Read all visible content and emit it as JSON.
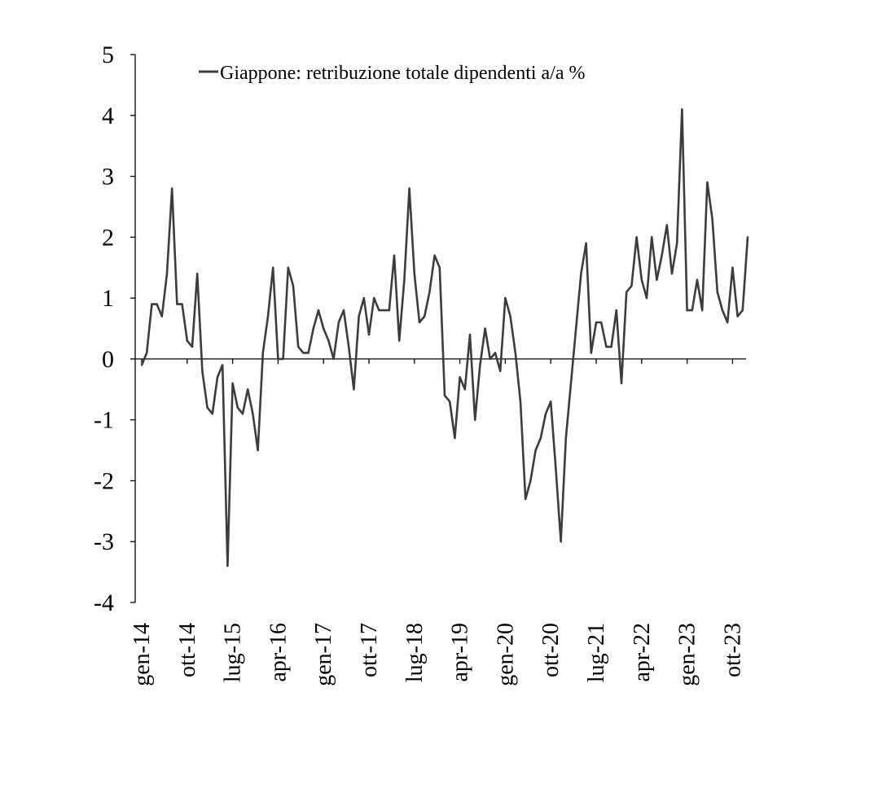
{
  "chart_data": {
    "type": "line",
    "title": "",
    "xlabel": "",
    "ylabel": "",
    "ylim": [
      -4,
      5
    ],
    "y_ticks": [
      5,
      4,
      3,
      2,
      1,
      0,
      -1,
      -2,
      -3,
      -4
    ],
    "x_tick_labels": [
      "gen-14",
      "ott-14",
      "lug-15",
      "apr-16",
      "gen-17",
      "ott-17",
      "lug-18",
      "apr-19",
      "gen-20",
      "ott-20",
      "lug-21",
      "apr-22",
      "gen-23",
      "ott-23"
    ],
    "grid": false,
    "legend": {
      "position": "top",
      "entries": [
        "Giappone: retribuzione totale dipendenti a/a %"
      ]
    },
    "colors": {
      "line": "#3c3c3c",
      "axis": "#000000"
    },
    "series": [
      {
        "name": "Giappone: retribuzione totale dipendenti a/a %",
        "start": "gen-14",
        "frequency": "monthly",
        "values": [
          -0.1,
          0.1,
          0.9,
          0.9,
          0.7,
          1.4,
          2.8,
          0.9,
          0.9,
          0.3,
          0.2,
          1.4,
          -0.2,
          -0.8,
          -0.9,
          -0.3,
          -0.1,
          -3.4,
          -0.4,
          -0.8,
          -0.9,
          -0.5,
          -0.9,
          -1.5,
          0.1,
          0.7,
          1.5,
          0.0,
          0.0,
          1.5,
          1.2,
          0.2,
          0.1,
          0.1,
          0.5,
          0.8,
          0.5,
          0.3,
          0.0,
          0.6,
          0.8,
          0.2,
          -0.5,
          0.7,
          1.0,
          0.4,
          1.0,
          0.8,
          0.8,
          0.8,
          1.7,
          0.3,
          1.3,
          2.8,
          1.4,
          0.6,
          0.7,
          1.1,
          1.7,
          1.5,
          -0.6,
          -0.7,
          -1.3,
          -0.3,
          -0.5,
          0.4,
          -1.0,
          -0.1,
          0.5,
          0.0,
          0.1,
          -0.2,
          1.0,
          0.7,
          0.1,
          -0.7,
          -2.3,
          -2.0,
          -1.5,
          -1.3,
          -0.9,
          -0.7,
          -1.8,
          -3.0,
          -1.3,
          -0.4,
          0.5,
          1.4,
          1.9,
          0.1,
          0.6,
          0.6,
          0.2,
          0.2,
          0.8,
          -0.4,
          1.1,
          1.2,
          2.0,
          1.3,
          1.0,
          2.0,
          1.3,
          1.7,
          2.2,
          1.4,
          1.9,
          4.1,
          0.8,
          0.8,
          1.3,
          0.8,
          2.9,
          2.3,
          1.1,
          0.8,
          0.6,
          1.5,
          0.7,
          0.8,
          2.0
        ]
      }
    ]
  }
}
